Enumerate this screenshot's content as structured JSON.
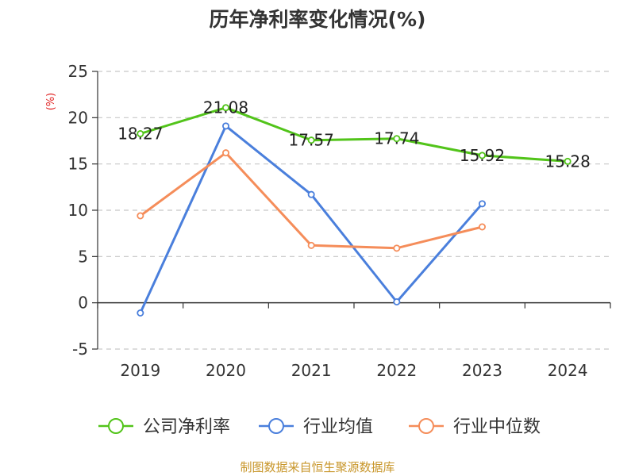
{
  "chart_data": {
    "type": "line",
    "title": "历年净利率变化情况(%)",
    "ylabel": "(%)",
    "xlabel": "",
    "categories": [
      "2019",
      "2020",
      "2021",
      "2022",
      "2023",
      "2024"
    ],
    "ylim": [
      -5,
      25
    ],
    "yticks": [
      -5,
      0,
      5,
      10,
      15,
      20,
      25
    ],
    "grid": true,
    "legend_position": "bottom",
    "series": [
      {
        "name": "公司净利率",
        "color": "#52c41a",
        "values": [
          18.27,
          21.08,
          17.57,
          17.74,
          15.92,
          15.28
        ],
        "labels": true
      },
      {
        "name": "行业均值",
        "color": "#4a7fdc",
        "values": [
          -1.1,
          19.1,
          11.7,
          0.1,
          10.7,
          null
        ],
        "labels": false
      },
      {
        "name": "行业中位数",
        "color": "#f58d5a",
        "values": [
          9.4,
          16.2,
          6.2,
          5.9,
          8.2,
          null
        ],
        "labels": false
      }
    ],
    "source": "制图数据来自恒生聚源数据库"
  }
}
